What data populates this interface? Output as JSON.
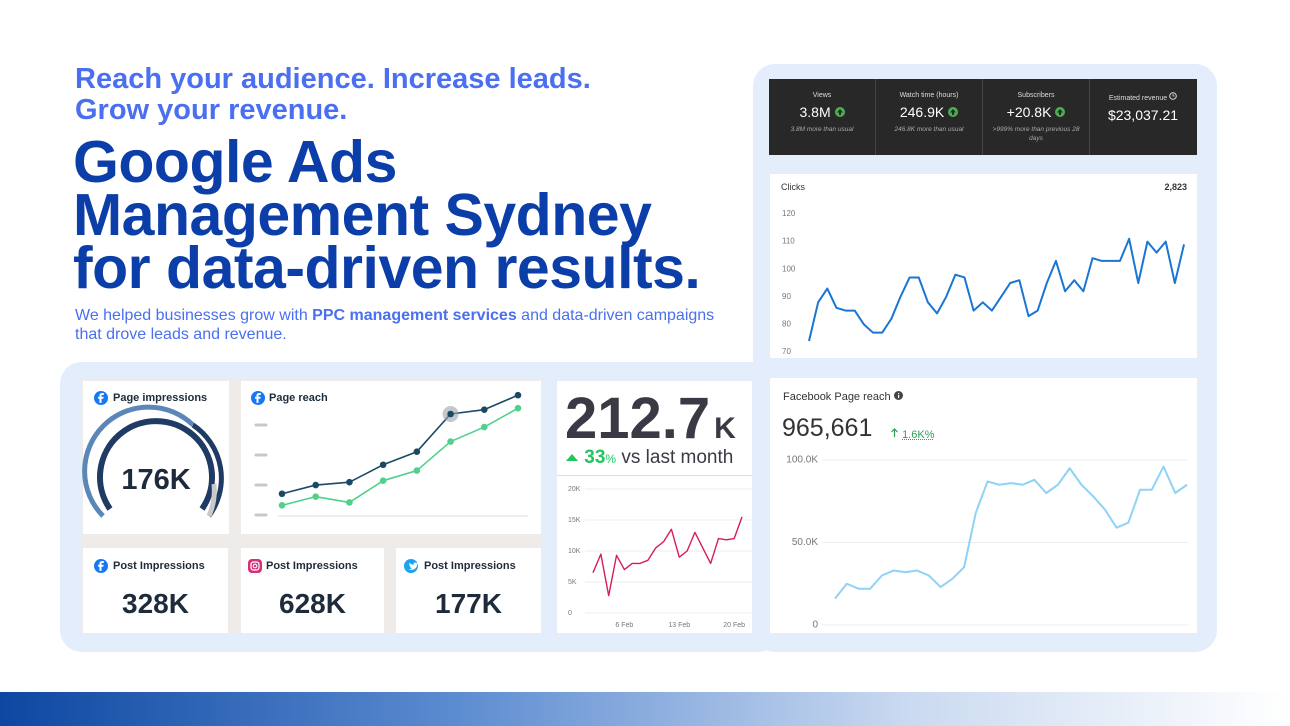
{
  "header": {
    "tagline": [
      "Reach your audience. Increase leads.",
      "Grow your revenue."
    ],
    "title": [
      "Google Ads",
      "Management Sydney",
      "for data-driven results."
    ],
    "description": {
      "before": "We helped businesses grow with ",
      "bold": "PPC management services",
      "after": " and data-driven campaigns that drove leads and revenue."
    }
  },
  "youtube_stats": [
    {
      "label": "Views",
      "value": "3.8M",
      "note": "3.8M more than usual"
    },
    {
      "label": "Watch time (hours)",
      "value": "246.9K",
      "note": "246.8K more than usual"
    },
    {
      "label": "Subscribers",
      "value": "+20.8K",
      "note": ">999% more than previous 28 days"
    },
    {
      "label": "Estimated revenue",
      "value": "$23,037.21"
    }
  ],
  "tiles": {
    "page_impressions": {
      "title": "Page impressions",
      "value": "176K"
    },
    "post_impressions": [
      {
        "title": "Post Impressions",
        "value": "328K"
      },
      {
        "title": "Post Impressions",
        "value": "628K"
      },
      {
        "title": "Post Impressions",
        "value": "177K"
      }
    ]
  },
  "kpi": {
    "value": "212.7",
    "suffix": "K",
    "change": "33",
    "change_unit": "%",
    "change_label": "vs last month"
  },
  "chart_data": [
    {
      "type": "line",
      "title": "Clicks",
      "total": "2,823",
      "color": "#1976d2",
      "values": [
        74,
        88,
        93,
        86,
        85,
        85,
        80,
        77,
        77,
        82,
        90,
        97,
        97,
        88,
        84,
        90,
        98,
        97,
        85,
        88,
        85,
        90,
        95,
        96,
        83,
        85,
        95,
        103,
        92,
        96,
        92,
        104,
        103,
        103,
        103,
        111,
        95,
        110,
        106,
        110,
        95,
        109
      ],
      "ylim": [
        70,
        120
      ],
      "yticks": [
        70,
        80,
        90,
        100,
        110,
        120
      ],
      "grid": false
    },
    {
      "type": "line",
      "title": "Page reach",
      "ylim": [
        0,
        100
      ],
      "highlight_index": 5,
      "series": [
        {
          "name": "Page reach",
          "color": "#1b4965",
          "values": [
            25,
            31,
            33,
            45,
            54,
            80,
            83,
            93
          ]
        },
        {
          "name": "Page reach previous",
          "color": "#4fd18b",
          "values": [
            17,
            23,
            19,
            34,
            41,
            61,
            71,
            84
          ]
        }
      ]
    },
    {
      "type": "line",
      "color": "#d81b60",
      "grid": true,
      "categories": [
        null,
        null,
        null,
        null,
        "6 Feb",
        null,
        null,
        null,
        null,
        null,
        null,
        "13 Feb",
        null,
        null,
        null,
        null,
        null,
        null,
        "20 Feb",
        null
      ],
      "values": [
        6500,
        9500,
        2800,
        9300,
        7000,
        8000,
        8000,
        8500,
        10500,
        11500,
        13500,
        9000,
        10000,
        13000,
        10500,
        8000,
        12000,
        11800,
        12000,
        15500
      ],
      "ylim": [
        0,
        20000
      ],
      "yticks": [
        0,
        {
          "value": 5000,
          "label": "5K"
        },
        {
          "value": 10000,
          "label": "10K"
        },
        {
          "value": 15000,
          "label": "15K"
        },
        {
          "value": 20000,
          "label": "20K"
        }
      ]
    },
    {
      "type": "line",
      "title": "Facebook Page reach",
      "total": "965,661",
      "change": "1.6K%",
      "color": "#8fd3f4",
      "grid": true,
      "values": [
        16000,
        25000,
        22000,
        22000,
        30000,
        33000,
        32000,
        33000,
        30000,
        23000,
        28000,
        35000,
        68000,
        87000,
        85000,
        86000,
        85000,
        88000,
        80000,
        85000,
        95000,
        85000,
        78000,
        70000,
        59000,
        62000,
        82000,
        82000,
        96000,
        80000,
        85000
      ],
      "ylim": [
        0,
        100000
      ],
      "yticks": [
        0,
        {
          "value": 50000,
          "label": "50.0K"
        },
        {
          "value": 100000,
          "label": "100.0K"
        }
      ]
    }
  ]
}
